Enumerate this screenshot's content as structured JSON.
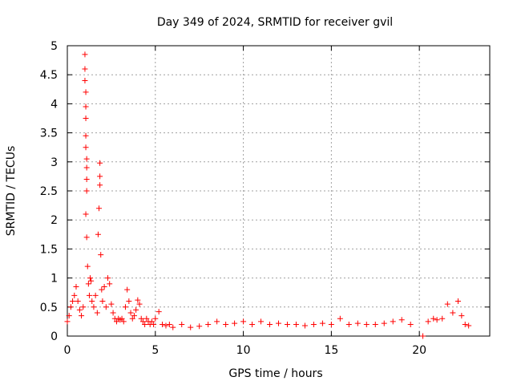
{
  "chart_data": {
    "type": "scatter",
    "title": "Day 349 of 2024, SRMTID for receiver gvil",
    "xlabel": "GPS time / hours",
    "ylabel": "SRMTID / TECUs",
    "xlim": [
      0,
      24
    ],
    "ylim": [
      0,
      5
    ],
    "x_ticks": [
      0,
      5,
      10,
      15,
      20
    ],
    "x_tick_labels": [
      "0",
      "5",
      "10",
      "15",
      "20"
    ],
    "y_ticks": [
      0,
      0.5,
      1,
      1.5,
      2,
      2.5,
      3,
      3.5,
      4,
      4.5,
      5
    ],
    "y_tick_labels": [
      "0",
      "0.5",
      "1",
      "1.5",
      "2",
      "2.5",
      "3",
      "3.5",
      "4",
      "4.5",
      "5"
    ],
    "grid": true,
    "marker": "plus",
    "color": "#ff0000",
    "series": [
      {
        "name": "SRMTID",
        "points": [
          [
            0.0,
            0.25
          ],
          [
            0.1,
            0.35
          ],
          [
            0.2,
            0.5
          ],
          [
            0.3,
            0.6
          ],
          [
            0.4,
            0.7
          ],
          [
            0.5,
            0.85
          ],
          [
            0.6,
            0.6
          ],
          [
            0.7,
            0.45
          ],
          [
            0.8,
            0.35
          ],
          [
            0.9,
            0.5
          ],
          [
            1.0,
            4.85
          ],
          [
            1.0,
            4.6
          ],
          [
            1.0,
            4.4
          ],
          [
            1.05,
            4.2
          ],
          [
            1.05,
            3.95
          ],
          [
            1.05,
            3.75
          ],
          [
            1.05,
            3.45
          ],
          [
            1.05,
            3.25
          ],
          [
            1.1,
            3.05
          ],
          [
            1.1,
            2.9
          ],
          [
            1.1,
            2.7
          ],
          [
            1.1,
            2.5
          ],
          [
            1.05,
            2.1
          ],
          [
            1.1,
            1.7
          ],
          [
            1.15,
            1.2
          ],
          [
            1.2,
            0.9
          ],
          [
            1.25,
            0.7
          ],
          [
            1.3,
            1.0
          ],
          [
            1.35,
            0.95
          ],
          [
            1.4,
            0.6
          ],
          [
            1.5,
            0.5
          ],
          [
            1.6,
            0.7
          ],
          [
            1.7,
            0.4
          ],
          [
            1.75,
            1.75
          ],
          [
            1.8,
            2.2
          ],
          [
            1.85,
            2.6
          ],
          [
            1.85,
            2.75
          ],
          [
            1.85,
            2.98
          ],
          [
            1.9,
            1.4
          ],
          [
            1.95,
            0.8
          ],
          [
            2.0,
            0.6
          ],
          [
            2.1,
            0.85
          ],
          [
            2.2,
            0.5
          ],
          [
            2.3,
            1.0
          ],
          [
            2.4,
            0.9
          ],
          [
            2.5,
            0.55
          ],
          [
            2.6,
            0.4
          ],
          [
            2.7,
            0.3
          ],
          [
            2.8,
            0.25
          ],
          [
            2.9,
            0.3
          ],
          [
            3.0,
            0.28
          ],
          [
            3.1,
            0.3
          ],
          [
            3.2,
            0.25
          ],
          [
            3.3,
            0.5
          ],
          [
            3.4,
            0.8
          ],
          [
            3.5,
            0.6
          ],
          [
            3.6,
            0.4
          ],
          [
            3.7,
            0.3
          ],
          [
            3.8,
            0.35
          ],
          [
            3.9,
            0.45
          ],
          [
            4.0,
            0.62
          ],
          [
            4.1,
            0.55
          ],
          [
            4.2,
            0.3
          ],
          [
            4.3,
            0.25
          ],
          [
            4.4,
            0.2
          ],
          [
            4.5,
            0.3
          ],
          [
            4.6,
            0.25
          ],
          [
            4.7,
            0.2
          ],
          [
            4.8,
            0.25
          ],
          [
            4.9,
            0.2
          ],
          [
            5.0,
            0.3
          ],
          [
            5.2,
            0.42
          ],
          [
            5.4,
            0.2
          ],
          [
            5.6,
            0.18
          ],
          [
            5.8,
            0.2
          ],
          [
            6.0,
            0.15
          ],
          [
            6.5,
            0.2
          ],
          [
            7.0,
            0.15
          ],
          [
            7.5,
            0.17
          ],
          [
            8.0,
            0.2
          ],
          [
            8.5,
            0.25
          ],
          [
            9.0,
            0.2
          ],
          [
            9.5,
            0.22
          ],
          [
            10.0,
            0.25
          ],
          [
            10.5,
            0.2
          ],
          [
            11.0,
            0.25
          ],
          [
            11.5,
            0.2
          ],
          [
            12.0,
            0.22
          ],
          [
            12.5,
            0.2
          ],
          [
            13.0,
            0.2
          ],
          [
            13.5,
            0.18
          ],
          [
            14.0,
            0.2
          ],
          [
            14.5,
            0.22
          ],
          [
            15.0,
            0.2
          ],
          [
            15.5,
            0.3
          ],
          [
            16.0,
            0.2
          ],
          [
            16.5,
            0.22
          ],
          [
            17.0,
            0.2
          ],
          [
            17.5,
            0.2
          ],
          [
            18.0,
            0.22
          ],
          [
            18.5,
            0.25
          ],
          [
            19.0,
            0.28
          ],
          [
            19.5,
            0.2
          ],
          [
            20.2,
            0.0
          ],
          [
            20.5,
            0.25
          ],
          [
            20.8,
            0.3
          ],
          [
            21.0,
            0.28
          ],
          [
            21.3,
            0.3
          ],
          [
            21.6,
            0.55
          ],
          [
            21.9,
            0.4
          ],
          [
            22.2,
            0.6
          ],
          [
            22.4,
            0.35
          ],
          [
            22.6,
            0.2
          ],
          [
            22.8,
            0.18
          ]
        ]
      }
    ]
  }
}
